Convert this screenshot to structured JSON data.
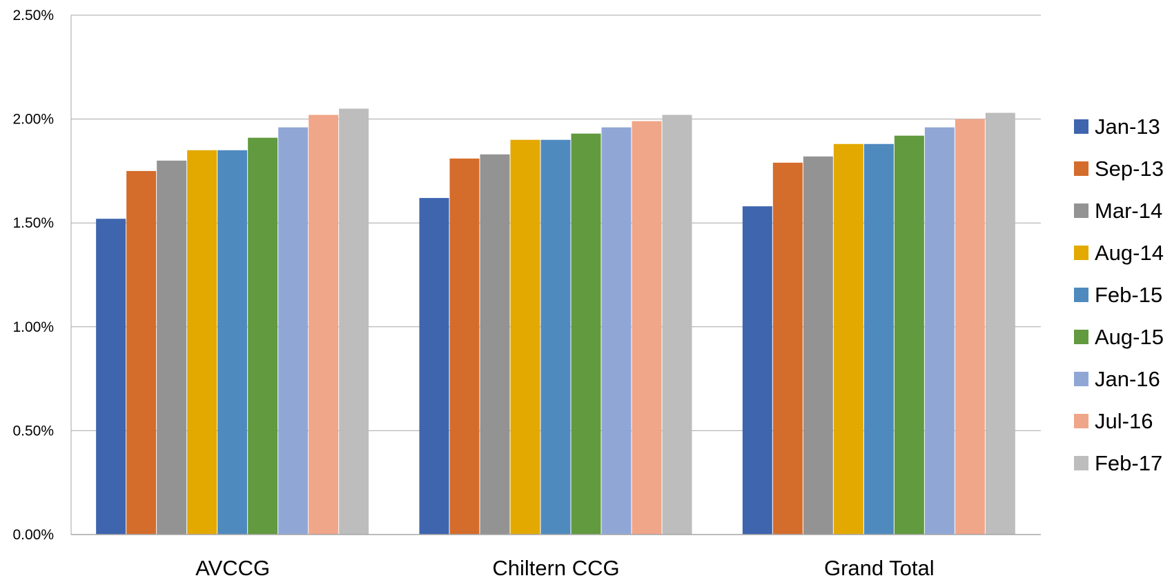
{
  "chart_data": {
    "type": "bar",
    "categories": [
      "AVCCG",
      "Chiltern CCG",
      "Grand Total"
    ],
    "series": [
      {
        "name": "Jan-13",
        "color": "#3E65AE",
        "values": [
          1.52,
          1.62,
          1.58
        ]
      },
      {
        "name": "Sep-13",
        "color": "#D46C2C",
        "values": [
          1.75,
          1.81,
          1.79
        ]
      },
      {
        "name": "Mar-14",
        "color": "#939393",
        "values": [
          1.8,
          1.83,
          1.82
        ]
      },
      {
        "name": "Aug-14",
        "color": "#E3A901",
        "values": [
          1.85,
          1.9,
          1.88
        ]
      },
      {
        "name": "Feb-15",
        "color": "#4F8ABF",
        "values": [
          1.85,
          1.9,
          1.88
        ]
      },
      {
        "name": "Aug-15",
        "color": "#619A3F",
        "values": [
          1.91,
          1.93,
          1.92
        ]
      },
      {
        "name": "Jan-16",
        "color": "#90A7D6",
        "values": [
          1.96,
          1.96,
          1.96
        ]
      },
      {
        "name": "Jul-16",
        "color": "#F0A689",
        "values": [
          2.02,
          1.99,
          2.0
        ]
      },
      {
        "name": "Feb-17",
        "color": "#BDBDBD",
        "values": [
          2.05,
          2.02,
          2.03
        ]
      }
    ],
    "ylim": [
      0,
      2.5
    ],
    "yticks": [
      "0.00%",
      "0.50%",
      "1.00%",
      "1.50%",
      "2.00%",
      "2.50%"
    ],
    "grid": true,
    "legend_position": "right"
  }
}
